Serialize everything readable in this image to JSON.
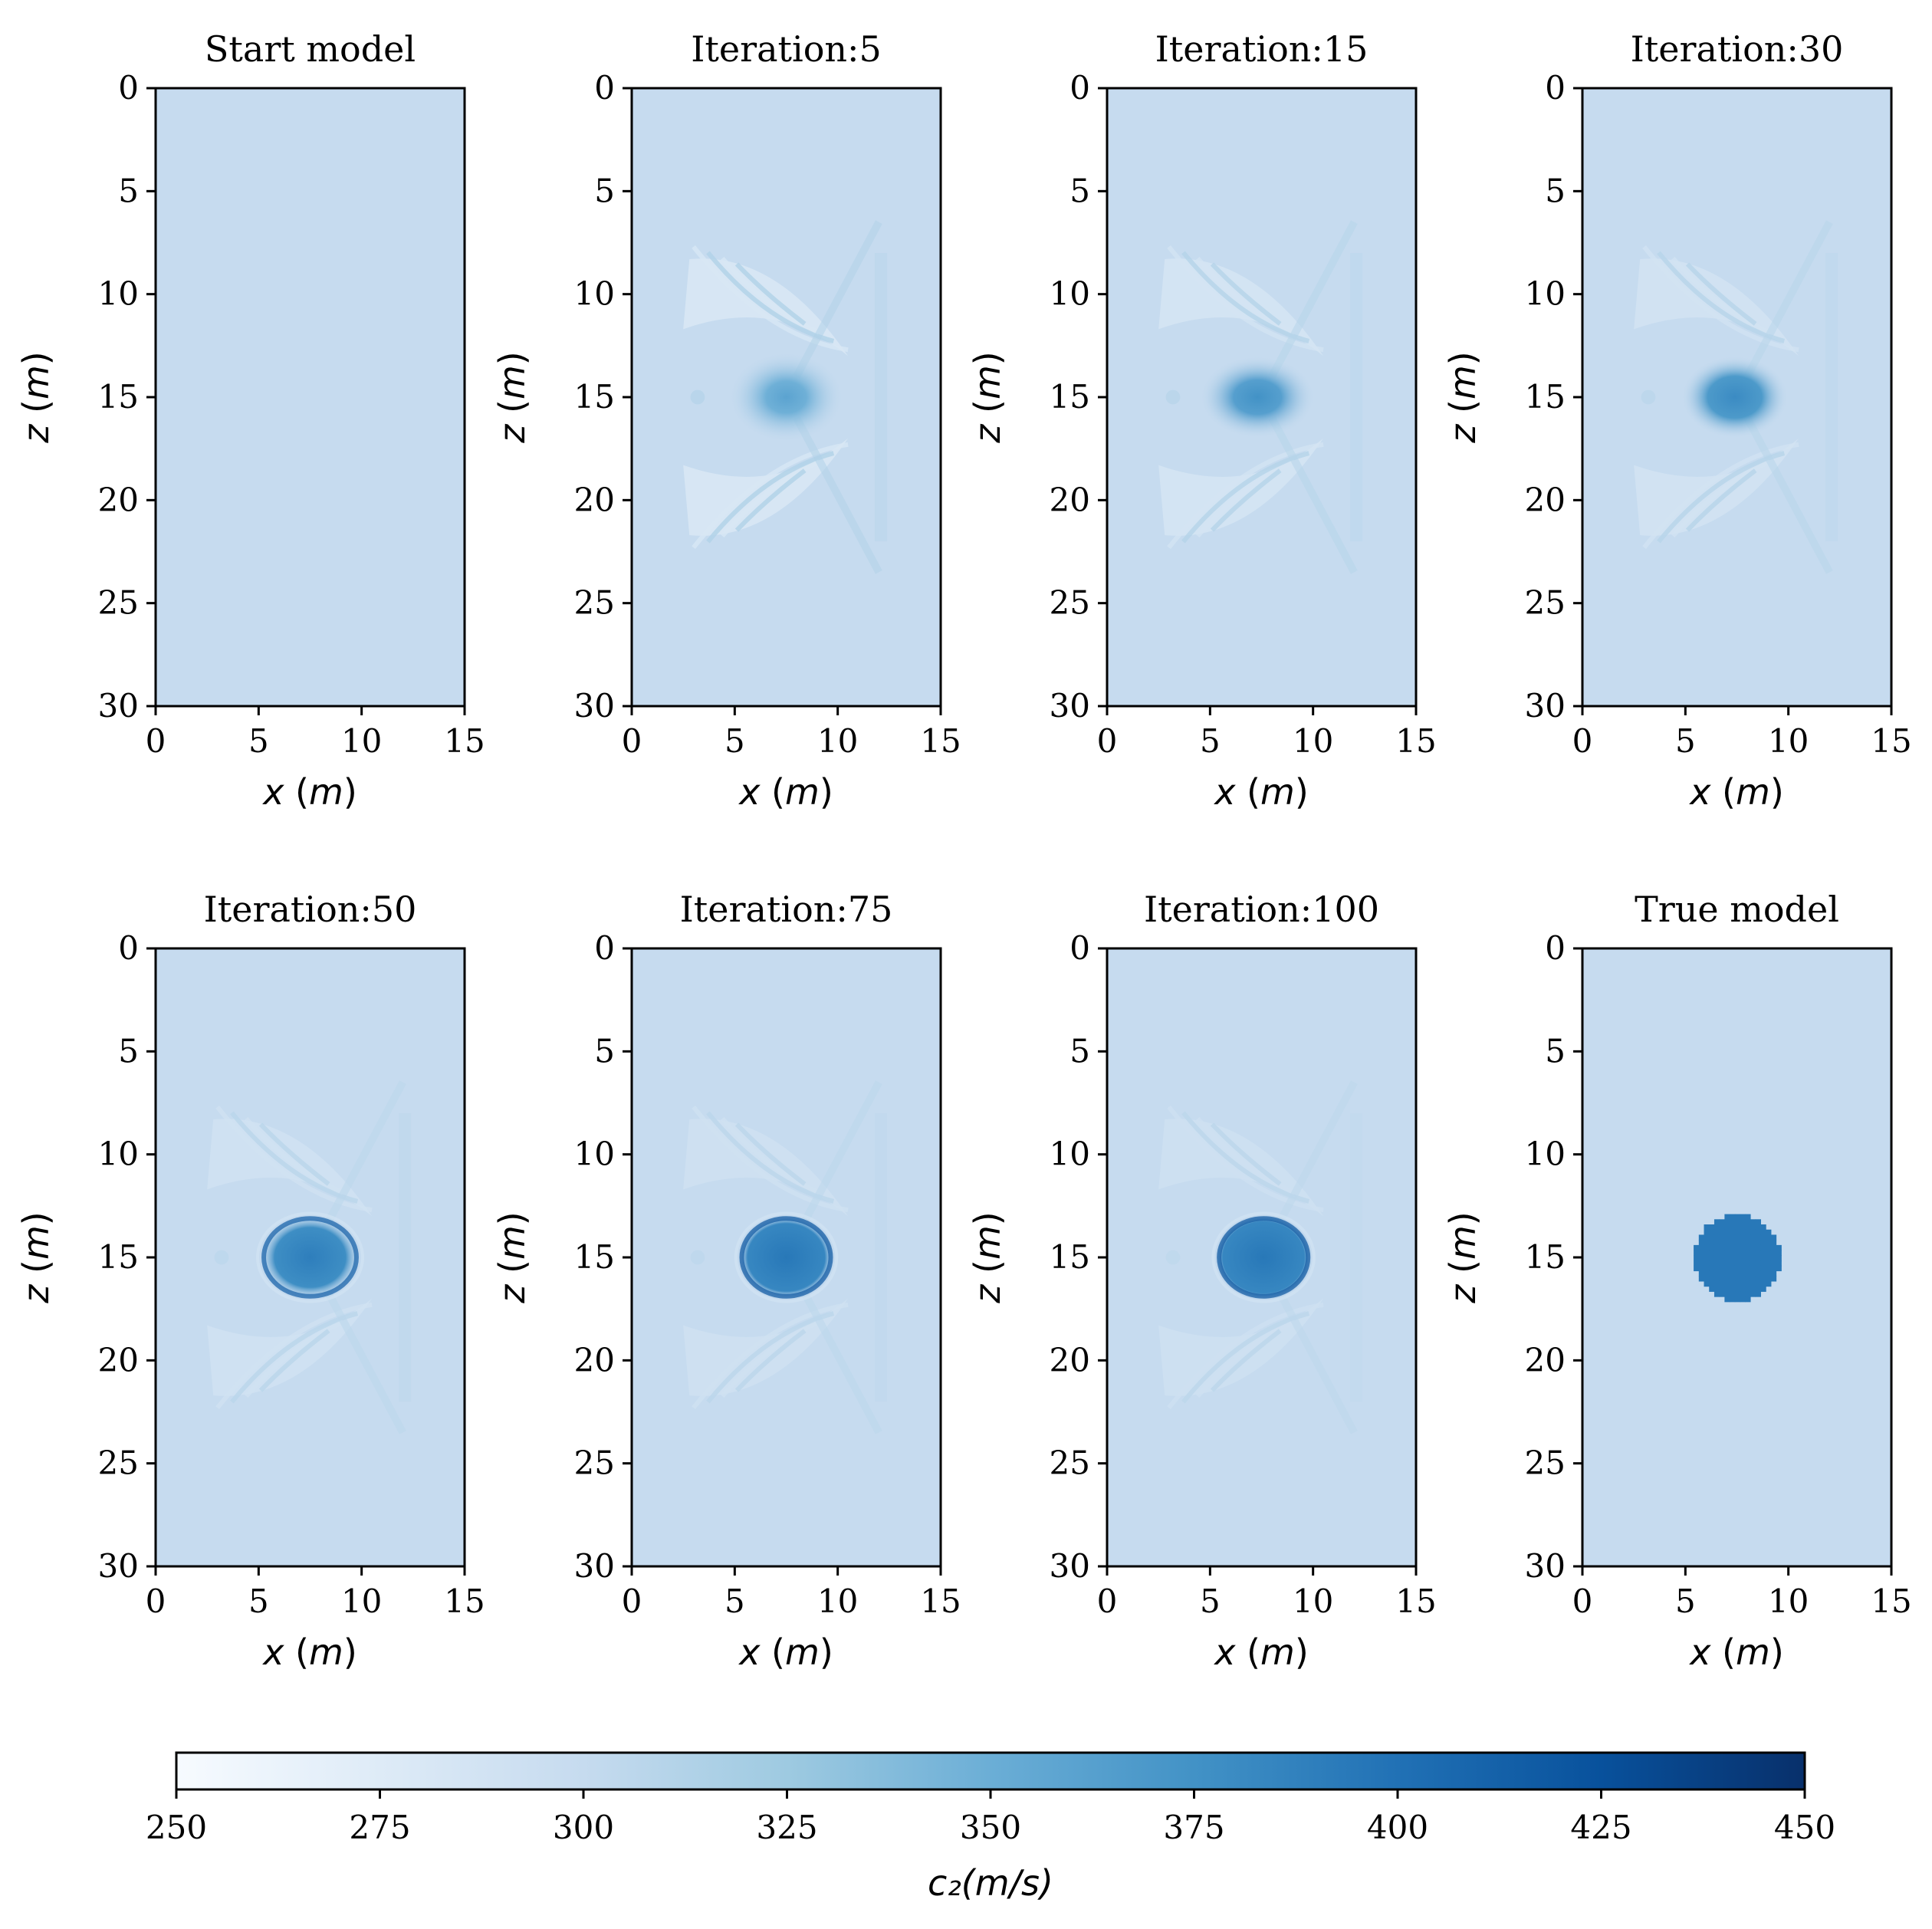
{
  "chart_data": [
    {
      "type": "heatmap",
      "title": "Start model",
      "xlabel": "x (m)",
      "ylabel": "z (m)",
      "xlim": [
        0,
        15
      ],
      "ylim": [
        30,
        0
      ],
      "xticks": [
        "0",
        "5",
        "10",
        "15"
      ],
      "yticks": [
        "0",
        "5",
        "10",
        "15",
        "20",
        "25",
        "30"
      ],
      "background_velocity": 300,
      "anomaly": null
    },
    {
      "type": "heatmap",
      "title": "Iteration:5",
      "xlabel": "x (m)",
      "ylabel": "z (m)",
      "xlim": [
        0,
        15
      ],
      "ylim": [
        30,
        0
      ],
      "xticks": [
        "0",
        "5",
        "10",
        "15"
      ],
      "yticks": [
        "0",
        "5",
        "10",
        "15",
        "20",
        "25",
        "30"
      ],
      "background_velocity": 300,
      "anomaly": {
        "cx": 7.5,
        "cz": 15,
        "rx": 2.8,
        "rz": 2.2,
        "velocity": 360,
        "sharpness": 0.2,
        "artifacts": 0.9
      }
    },
    {
      "type": "heatmap",
      "title": "Iteration:15",
      "xlabel": "x (m)",
      "ylabel": "z (m)",
      "xlim": [
        0,
        15
      ],
      "ylim": [
        30,
        0
      ],
      "xticks": [
        "0",
        "5",
        "10",
        "15"
      ],
      "yticks": [
        "0",
        "5",
        "10",
        "15",
        "20",
        "25",
        "30"
      ],
      "background_velocity": 300,
      "anomaly": {
        "cx": 7.3,
        "cz": 15,
        "rx": 2.8,
        "rz": 2.0,
        "velocity": 375,
        "sharpness": 0.45,
        "artifacts": 0.7
      }
    },
    {
      "type": "heatmap",
      "title": "Iteration:30",
      "xlabel": "x (m)",
      "ylabel": "z (m)",
      "xlim": [
        0,
        15
      ],
      "ylim": [
        30,
        0
      ],
      "xticks": [
        "0",
        "5",
        "10",
        "15"
      ],
      "yticks": [
        "0",
        "5",
        "10",
        "15",
        "20",
        "25",
        "30"
      ],
      "background_velocity": 300,
      "anomaly": {
        "cx": 7.4,
        "cz": 15,
        "rx": 2.6,
        "rz": 2.0,
        "velocity": 380,
        "sharpness": 0.55,
        "artifacts": 0.6
      }
    },
    {
      "type": "heatmap",
      "title": "Iteration:50",
      "xlabel": "x (m)",
      "ylabel": "z (m)",
      "xlim": [
        0,
        15
      ],
      "ylim": [
        30,
        0
      ],
      "xticks": [
        "0",
        "5",
        "10",
        "15"
      ],
      "yticks": [
        "0",
        "5",
        "10",
        "15",
        "20",
        "25",
        "30"
      ],
      "background_velocity": 300,
      "anomaly": {
        "cx": 7.5,
        "cz": 15,
        "rx": 2.5,
        "rz": 2.1,
        "velocity": 390,
        "sharpness": 0.75,
        "artifacts": 0.5
      }
    },
    {
      "type": "heatmap",
      "title": "Iteration:75",
      "xlabel": "x (m)",
      "ylabel": "z (m)",
      "xlim": [
        0,
        15
      ],
      "ylim": [
        30,
        0
      ],
      "xticks": [
        "0",
        "5",
        "10",
        "15"
      ],
      "yticks": [
        "0",
        "5",
        "10",
        "15",
        "20",
        "25",
        "30"
      ],
      "background_velocity": 300,
      "anomaly": {
        "cx": 7.5,
        "cz": 15,
        "rx": 2.4,
        "rz": 2.1,
        "velocity": 395,
        "sharpness": 0.85,
        "artifacts": 0.45
      }
    },
    {
      "type": "heatmap",
      "title": "Iteration:100",
      "xlabel": "x (m)",
      "ylabel": "z (m)",
      "xlim": [
        0,
        15
      ],
      "ylim": [
        30,
        0
      ],
      "xticks": [
        "0",
        "5",
        "10",
        "15"
      ],
      "yticks": [
        "0",
        "5",
        "10",
        "15",
        "20",
        "25",
        "30"
      ],
      "background_velocity": 300,
      "anomaly": {
        "cx": 7.6,
        "cz": 15,
        "rx": 2.4,
        "rz": 2.1,
        "velocity": 395,
        "sharpness": 0.9,
        "artifacts": 0.4
      }
    },
    {
      "type": "heatmap",
      "title": "True model",
      "xlabel": "x (m)",
      "ylabel": "z (m)",
      "xlim": [
        0,
        15
      ],
      "ylim": [
        30,
        0
      ],
      "xticks": [
        "0",
        "5",
        "10",
        "15"
      ],
      "yticks": [
        "0",
        "5",
        "10",
        "15",
        "20",
        "25",
        "30"
      ],
      "background_velocity": 300,
      "anomaly": {
        "cx": 7.5,
        "cz": 15,
        "rx": 2.1,
        "rz": 2.1,
        "velocity": 395,
        "sharpness": 1.0,
        "artifacts": 0
      }
    }
  ],
  "colorbar": {
    "label": "c₂(m/s)",
    "min": 250,
    "max": 450,
    "ticks": [
      "250",
      "275",
      "300",
      "325",
      "350",
      "375",
      "400",
      "425",
      "450"
    ],
    "colormap": "Blues",
    "colormap_stops": [
      "#f7fbff",
      "#deebf7",
      "#c6dbef",
      "#9ecae1",
      "#6baed6",
      "#4292c6",
      "#2171b5",
      "#08519c",
      "#08306b"
    ]
  }
}
